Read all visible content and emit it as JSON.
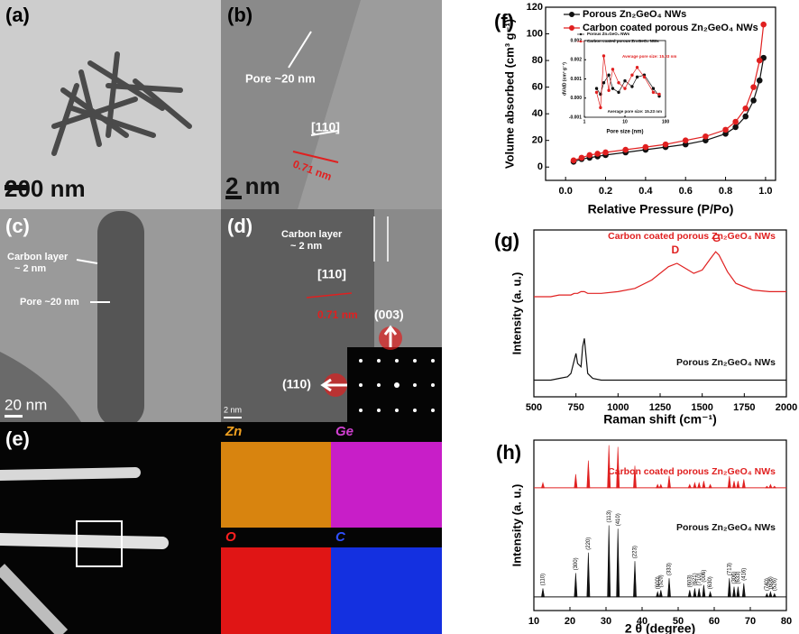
{
  "micrographs": {
    "a": {
      "label": "(a)",
      "scale": "200 nm"
    },
    "b": {
      "label": "(b)",
      "pore": "Pore ~20 nm",
      "direction": "[110]",
      "spacing": "0.71 nm",
      "scale": "2 nm"
    },
    "c": {
      "label": "(c)",
      "carbon_layer": [
        "Carbon layer",
        "~ 2 nm"
      ],
      "pore": "Pore ~20 nm",
      "scale": "20 nm"
    },
    "d": {
      "label": "(d)",
      "carbon_layer": [
        "Carbon layer",
        "~ 2 nm"
      ],
      "direction": "[110]",
      "spacing": "0.71 nm",
      "spots": [
        "(003)",
        "(110)"
      ],
      "scale": "2 nm"
    },
    "e": {
      "label": "(e)",
      "maps": [
        "Zn",
        "Ge",
        "O",
        "C"
      ]
    }
  },
  "chart_data": [
    {
      "type": "line",
      "panel_label": "(f)",
      "x_label": "Relative Pressure (P/Po)",
      "y_label": "Volume absorbed (cm³ g⁻¹)",
      "xlim": [
        -0.1,
        1.05
      ],
      "xticks": [
        {
          "value": 0,
          "label": "0.0"
        },
        {
          "value": 0.2,
          "label": "0.2"
        },
        {
          "value": 0.4,
          "label": "0.4"
        },
        {
          "value": 0.6,
          "label": "0.6"
        },
        {
          "value": 0.8,
          "label": "0.8"
        },
        {
          "value": 1,
          "label": "1.0"
        }
      ],
      "ylim": [
        -10,
        120
      ],
      "yticks": [
        0,
        20,
        40,
        60,
        80,
        100,
        120
      ],
      "legend": "upper left",
      "markers": true,
      "x": [
        0.04,
        0.08,
        0.12,
        0.16,
        0.2,
        0.3,
        0.4,
        0.5,
        0.6,
        0.7,
        0.8,
        0.85,
        0.9,
        0.94,
        0.97,
        0.99
      ],
      "series": [
        {
          "name": "Porous Zn₂GeO₄ NWs",
          "color": "#111111",
          "values": [
            4,
            6,
            7,
            8,
            9,
            11,
            13,
            15,
            17,
            20,
            25,
            30,
            38,
            50,
            65,
            82
          ]
        },
        {
          "name": "Carbon coated porous Zn₂GeO₄ NWs",
          "color": "#e02020",
          "values": [
            5,
            7,
            9,
            10,
            11,
            13,
            15,
            17,
            20,
            23,
            28,
            34,
            44,
            60,
            80,
            107
          ]
        }
      ]
    },
    {
      "type": "line",
      "x_label": "Pore size (nm)",
      "y_label": "dV/dD (cm³ g⁻¹)",
      "xscale": "log",
      "xlim": [
        1,
        100
      ],
      "xticks": [
        1,
        10,
        100
      ],
      "ylim": [
        -0.001,
        0.003
      ],
      "yticks": [
        {
          "value": -0.001,
          "label": "-0.001"
        },
        {
          "value": 0,
          "label": "0.000"
        },
        {
          "value": 0.001,
          "label": "0.001"
        },
        {
          "value": 0.002,
          "label": "0.002"
        },
        {
          "value": 0.003,
          "label": "0.003"
        }
      ],
      "legend": "upper left",
      "markers": true,
      "x": [
        2,
        2.5,
        3,
        4,
        5,
        7,
        10,
        15,
        20,
        30,
        50,
        70
      ],
      "series": [
        {
          "name": "Porous Zn₂GeO₄ NWs",
          "color": "#111111",
          "values": [
            0.0005,
            0.0002,
            0.0008,
            0.0012,
            0.0005,
            0.0003,
            0.0009,
            0.0006,
            0.0011,
            0.0012,
            0.0005,
            0.0001
          ]
        },
        {
          "name": "Carbon coated porous Zn₂GeO₄ NWs",
          "color": "#e02020",
          "values": [
            0.0003,
            -0.0005,
            0.0022,
            0.0004,
            0.0015,
            0.0008,
            0.0005,
            0.0012,
            0.0016,
            0.0011,
            0.0003,
            0.0002
          ]
        }
      ],
      "annotations": [
        {
          "text": "Average pore size: 15.03 nm",
          "color": "#e02020"
        },
        {
          "text": "Average pore size: 15.23 nm",
          "color": "#111111"
        }
      ]
    },
    {
      "type": "line",
      "panel_label": "(g)",
      "x_label": "Raman shift (cm⁻¹)",
      "y_label": "Intensity (a. u.)",
      "xlim": [
        500,
        2000
      ],
      "xticks": [
        500,
        750,
        1000,
        1250,
        1500,
        1750,
        2000
      ],
      "ylim": [
        0,
        100
      ],
      "legend": "inline",
      "x": [
        500,
        550,
        600,
        650,
        700,
        720,
        740,
        750,
        760,
        780,
        790,
        800,
        820,
        850,
        900,
        1000,
        1100,
        1200,
        1300,
        1350,
        1400,
        1450,
        1500,
        1550,
        1580,
        1600,
        1650,
        1700,
        1800,
        1900,
        2000
      ],
      "series": [
        {
          "name": "Carbon coated porous Zn₂GeO₄ NWs",
          "color": "#e02020",
          "values": [
            60,
            60,
            60,
            61,
            61,
            61,
            62,
            62,
            62,
            63,
            63,
            63,
            62,
            62,
            62,
            63,
            65,
            70,
            78,
            80,
            77,
            74,
            76,
            83,
            87,
            85,
            75,
            68,
            64,
            63,
            63
          ]
        },
        {
          "name": "Porous Zn₂GeO₄ NWs",
          "color": "#111111",
          "values": [
            10,
            10,
            10,
            11,
            12,
            14,
            22,
            26,
            20,
            18,
            30,
            35,
            14,
            11,
            10,
            10,
            10,
            10,
            10,
            10,
            10,
            10,
            10,
            10,
            10,
            10,
            10,
            10,
            10,
            10,
            10
          ]
        }
      ],
      "annotations": [
        "D",
        "G"
      ]
    },
    {
      "type": "stem",
      "panel_label": "(h)",
      "x_label": "2 θ (degree)",
      "y_label": "Intensity (a. u.)",
      "xlim": [
        10,
        80
      ],
      "xticks": [
        10,
        20,
        30,
        40,
        50,
        60,
        70,
        80
      ],
      "ylim": [
        0,
        100
      ],
      "legend": "inline",
      "x": [
        12.5,
        21.6,
        25.1,
        30.8,
        33.3,
        38.0,
        44.3,
        45.2,
        47.5,
        53.2,
        54.6,
        55.8,
        57.1,
        58.9,
        64.2,
        65.5,
        66.6,
        68.2,
        74.6,
        75.6,
        76.7
      ],
      "peak_labels": [
        "(110)",
        "(300)",
        "(220)",
        "(113)",
        "(410)",
        "(223)",
        "(600)",
        "(520)",
        "(333)",
        "(603)",
        "(621)",
        "(710)",
        "(006)",
        "(630)",
        "(713)",
        "(306)",
        "(633)",
        "(416)",
        "(740)",
        "(606)",
        "(526)"
      ],
      "series": [
        {
          "name": "Carbon coated porous Zn₂GeO₄ NWs",
          "color": "#e02020",
          "baseline": 72,
          "values": [
            75,
            80,
            88,
            97,
            96,
            85,
            74,
            74,
            79,
            74,
            75,
            75,
            76,
            74,
            79,
            76,
            76,
            77,
            73,
            74,
            73
          ]
        },
        {
          "name": "Porous Zn₂GeO₄ NWs",
          "color": "#111111",
          "baseline": 8,
          "values": [
            13,
            22,
            34,
            50,
            48,
            29,
            11,
            12,
            19,
            12,
            13,
            13,
            15,
            11,
            19,
            14,
            14,
            16,
            10,
            11,
            10
          ]
        }
      ]
    }
  ]
}
